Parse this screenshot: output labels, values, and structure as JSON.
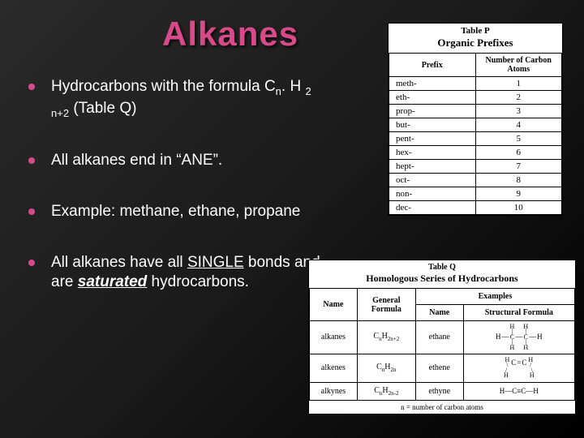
{
  "title": "Alkanes",
  "bullets": [
    {
      "pre": "Hydrocarbons with the formula C",
      "sub1": "n",
      "mid1": ". H ",
      "sub2": "2 n+2",
      "post": " (Table Q)"
    },
    {
      "text": "All alkanes end in “ANE”."
    },
    {
      "text": "Example:  methane, ethane, propane"
    },
    {
      "pre": "All alkanes have all ",
      "u": "SINGLE",
      "mid": " bonds and are ",
      "bi": "saturated",
      "post": " hydrocarbons."
    }
  ],
  "tableP": {
    "caption": "Table P",
    "subcaption": "Organic Prefixes",
    "headers": [
      "Prefix",
      "Number of Carbon Atoms"
    ],
    "rows": [
      [
        "meth-",
        "1"
      ],
      [
        "eth-",
        "2"
      ],
      [
        "prop-",
        "3"
      ],
      [
        "but-",
        "4"
      ],
      [
        "pent-",
        "5"
      ],
      [
        "hex-",
        "6"
      ],
      [
        "hept-",
        "7"
      ],
      [
        "oct-",
        "8"
      ],
      [
        "non-",
        "9"
      ],
      [
        "dec-",
        "10"
      ]
    ],
    "col_widths": [
      "50%",
      "50%"
    ]
  },
  "tableQ": {
    "caption": "Table Q",
    "subcaption": "Homologous Series of Hydrocarbons",
    "headers": [
      "Name",
      "General Formula",
      "Examples"
    ],
    "sub_headers": [
      "",
      "",
      "Name",
      "Structural Formula"
    ],
    "rows": [
      {
        "name": "alkanes",
        "gf_pre": "C",
        "gf_s1": "n",
        "gf_mid": "H",
        "gf_s2": "2n+2",
        "ex": "ethane",
        "sf": "ethane"
      },
      {
        "name": "alkenes",
        "gf_pre": "C",
        "gf_s1": "n",
        "gf_mid": "H",
        "gf_s2": "2n",
        "ex": "ethene",
        "sf": "ethene"
      },
      {
        "name": "alkynes",
        "gf_pre": "C",
        "gf_s1": "n",
        "gf_mid": "H",
        "gf_s2": "2n-2",
        "ex": "ethyne",
        "sf": "ethyne"
      }
    ],
    "footnote": "n = number of carbon atoms",
    "col_widths": [
      "18%",
      "22%",
      "18%",
      "42%"
    ]
  },
  "colors": {
    "accent": "#d94a8a",
    "text": "#ffffff",
    "table_bg": "#ffffff",
    "table_border": "#000000"
  }
}
